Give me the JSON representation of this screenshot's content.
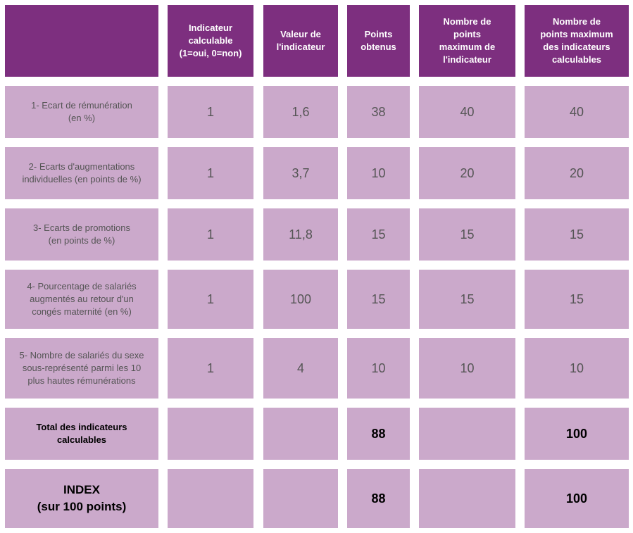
{
  "colors": {
    "header": "#7d2f7f",
    "cell": "#cba9cb",
    "header_text": "#ffffff"
  },
  "table": {
    "headers": [
      "",
      "Indicateur\ncalculable\n(1=oui, 0=non)",
      "Valeur de\nl'indicateur",
      "Points\nobtenus",
      "Nombre de\npoints\nmaximum de\nl'indicateur",
      "Nombre de\npoints maximum\ndes indicateurs\ncalculables"
    ],
    "rows": [
      [
        "1- Ecart de rémunération\n(en %)",
        "1",
        "1,6",
        "38",
        "40",
        "40"
      ],
      [
        "2- Ecarts d'augmentations\nindividuelles (en points de %)",
        "1",
        "3,7",
        "10",
        "20",
        "20"
      ],
      [
        "3- Ecarts de promotions\n(en points de %)",
        "1",
        "11,8",
        "15",
        "15",
        "15"
      ],
      [
        "4- Pourcentage de salariés\naugmentés au retour d'un\ncongés maternité (en %)",
        "1",
        "100",
        "15",
        "15",
        "15"
      ],
      [
        "5- Nombre de salariés du sexe\nsous-représenté parmi les 10\nplus hautes rémunérations",
        "1",
        "4",
        "10",
        "10",
        "10"
      ],
      [
        "Total des indicateurs\ncalculables",
        "",
        "",
        "88",
        "",
        "100"
      ],
      [
        "INDEX\n(sur 100 points)",
        "",
        "",
        "88",
        "",
        "100"
      ]
    ]
  }
}
